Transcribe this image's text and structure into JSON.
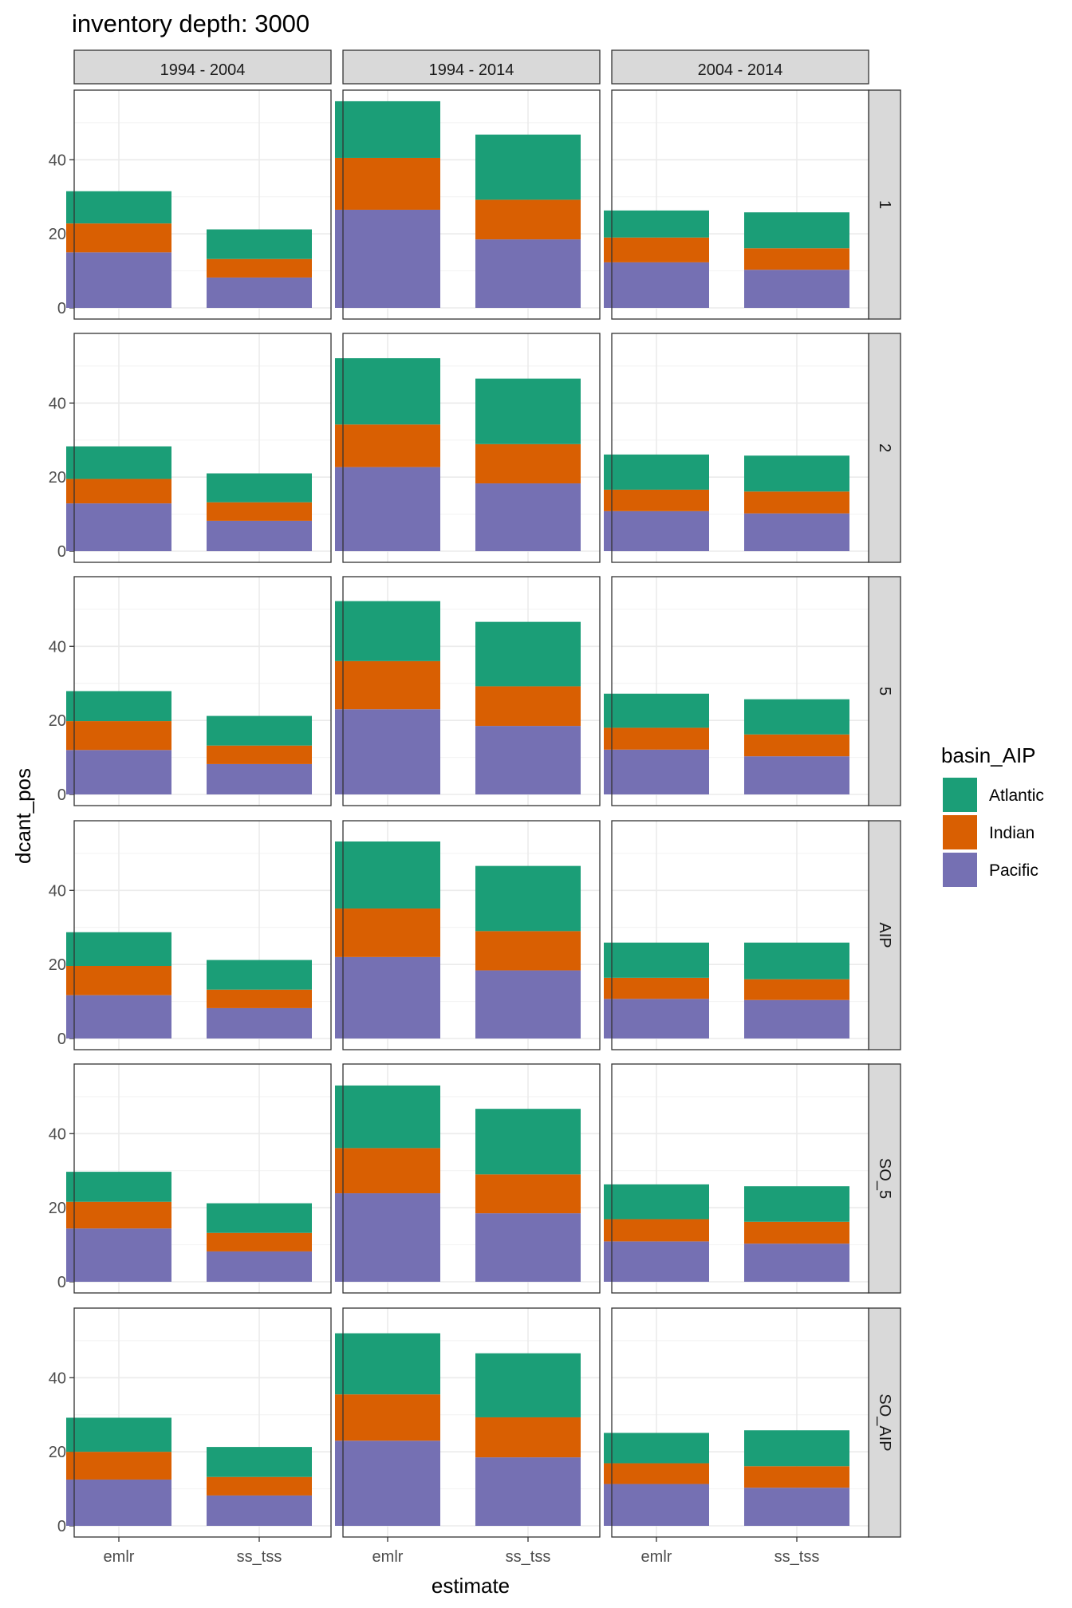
{
  "chart_data": {
    "type": "bar",
    "stacked": true,
    "title": "inventory depth: 3000",
    "xlabel": "estimate",
    "ylabel": "dcant_pos",
    "ylim": [
      0,
      58
    ],
    "y_ticks": [
      0,
      20,
      40
    ],
    "grid": true,
    "legend": {
      "title": "basin_AIP",
      "placement": "right"
    },
    "categories": [
      "emlr",
      "ss_tss"
    ],
    "facet_cols": [
      "1994 - 2004",
      "1994 - 2014",
      "2004 - 2014"
    ],
    "facet_rows": [
      "1",
      "2",
      "5",
      "AIP",
      "SO_5",
      "SO_AIP"
    ],
    "series": [
      {
        "name": "Pacific",
        "color": "#7570b3"
      },
      {
        "name": "Indian",
        "color": "#d95f02"
      },
      {
        "name": "Atlantic",
        "color": "#1b9e77"
      }
    ],
    "panels": [
      {
        "row": "1",
        "col": "1994 - 2004",
        "emlr": [
          15,
          7.8,
          8.7
        ],
        "ss_tss": [
          8.2,
          5,
          8
        ]
      },
      {
        "row": "1",
        "col": "1994 - 2014",
        "emlr": [
          26.5,
          14,
          15.3
        ],
        "ss_tss": [
          18.5,
          10.7,
          17.6
        ]
      },
      {
        "row": "1",
        "col": "2004 - 2014",
        "emlr": [
          12.3,
          6.7,
          7.3
        ],
        "ss_tss": [
          10.3,
          5.8,
          9.7
        ]
      },
      {
        "row": "2",
        "col": "1994 - 2004",
        "emlr": [
          12.9,
          6.6,
          8.8
        ],
        "ss_tss": [
          8.2,
          5,
          7.8
        ]
      },
      {
        "row": "2",
        "col": "1994 - 2014",
        "emlr": [
          22.7,
          11.5,
          17.9
        ],
        "ss_tss": [
          18.3,
          10.6,
          17.7
        ]
      },
      {
        "row": "2",
        "col": "2004 - 2014",
        "emlr": [
          10.8,
          5.8,
          9.5
        ],
        "ss_tss": [
          10.2,
          5.9,
          9.7
        ]
      },
      {
        "row": "5",
        "col": "1994 - 2004",
        "emlr": [
          12,
          7.8,
          8.1
        ],
        "ss_tss": [
          8.2,
          5,
          8
        ]
      },
      {
        "row": "5",
        "col": "1994 - 2014",
        "emlr": [
          23,
          13,
          16.2
        ],
        "ss_tss": [
          18.5,
          10.7,
          17.4
        ]
      },
      {
        "row": "5",
        "col": "2004 - 2014",
        "emlr": [
          12.1,
          5.9,
          9.2
        ],
        "ss_tss": [
          10.3,
          5.9,
          9.5
        ]
      },
      {
        "row": "AIP",
        "col": "1994 - 2004",
        "emlr": [
          11.7,
          7.9,
          9.1
        ],
        "ss_tss": [
          8.2,
          5,
          8
        ]
      },
      {
        "row": "AIP",
        "col": "1994 - 2014",
        "emlr": [
          22,
          13.1,
          18.1
        ],
        "ss_tss": [
          18.4,
          10.6,
          17.6
        ]
      },
      {
        "row": "AIP",
        "col": "2004 - 2014",
        "emlr": [
          10.7,
          5.7,
          9.5
        ],
        "ss_tss": [
          10.4,
          5.6,
          9.9
        ]
      },
      {
        "row": "SO_5",
        "col": "1994 - 2004",
        "emlr": [
          14.4,
          7.2,
          8.1
        ],
        "ss_tss": [
          8.2,
          5,
          8
        ]
      },
      {
        "row": "SO_5",
        "col": "1994 - 2014",
        "emlr": [
          23.9,
          12.2,
          16.9
        ],
        "ss_tss": [
          18.5,
          10.5,
          17.7
        ]
      },
      {
        "row": "SO_5",
        "col": "2004 - 2014",
        "emlr": [
          10.9,
          6,
          9.4
        ],
        "ss_tss": [
          10.3,
          5.9,
          9.6
        ]
      },
      {
        "row": "SO_AIP",
        "col": "1994 - 2004",
        "emlr": [
          12.5,
          7.5,
          9.2
        ],
        "ss_tss": [
          8.2,
          5,
          8.1
        ]
      },
      {
        "row": "SO_AIP",
        "col": "1994 - 2014",
        "emlr": [
          23,
          12.5,
          16.5
        ],
        "ss_tss": [
          18.5,
          10.8,
          17.3
        ]
      },
      {
        "row": "SO_AIP",
        "col": "2004 - 2014",
        "emlr": [
          11.3,
          5.6,
          8.2
        ],
        "ss_tss": [
          10.3,
          5.8,
          9.7
        ]
      }
    ]
  }
}
